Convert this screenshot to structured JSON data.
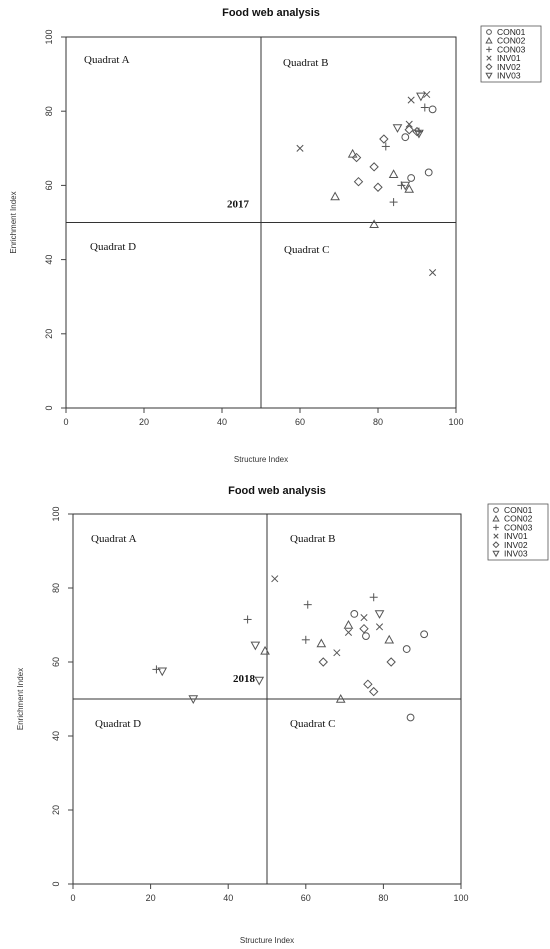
{
  "chart_data": [
    {
      "type": "scatter",
      "title": "Food web analysis",
      "xlabel": "Structure Index",
      "ylabel": "Enrichment Index",
      "xlim": [
        0,
        100
      ],
      "ylim": [
        0,
        100
      ],
      "xticks": [
        "0",
        "20",
        "40",
        "60",
        "80",
        "100"
      ],
      "yticks": [
        "0",
        "20",
        "40",
        "60",
        "80",
        "100"
      ],
      "quadrant_lines": {
        "x": 50,
        "y": 50
      },
      "quadrant_labels": [
        "Quadrat A",
        "Quadrat B",
        "Quadrat C",
        "Quadrat D"
      ],
      "annotation": "2017",
      "legend_position": "top-right",
      "series": [
        {
          "name": "CON01",
          "marker": "circle",
          "points": [
            [
              87,
              73
            ],
            [
              94,
              80.5
            ],
            [
              88.5,
              62
            ],
            [
              93,
              63.5
            ]
          ]
        },
        {
          "name": "CON02",
          "marker": "triangle-up",
          "points": [
            [
              69,
              57
            ],
            [
              73.5,
              68.5
            ],
            [
              84,
              63
            ],
            [
              88,
              59
            ],
            [
              79,
              49.5
            ]
          ]
        },
        {
          "name": "CON03",
          "marker": "plus",
          "points": [
            [
              82,
              70.5
            ],
            [
              84,
              55.5
            ],
            [
              86,
              60
            ],
            [
              90.5,
              74.5
            ],
            [
              92,
              81
            ]
          ]
        },
        {
          "name": "INV01",
          "marker": "cross",
          "points": [
            [
              60,
              70
            ],
            [
              88,
              76.5
            ],
            [
              88.5,
              83
            ],
            [
              92.5,
              84.5
            ],
            [
              94,
              36.5
            ]
          ]
        },
        {
          "name": "INV02",
          "marker": "diamond",
          "points": [
            [
              74.5,
              67.5
            ],
            [
              75,
              61
            ],
            [
              79,
              65
            ],
            [
              80,
              59.5
            ],
            [
              81.5,
              72.5
            ],
            [
              88,
              75
            ],
            [
              90,
              74.5
            ]
          ]
        },
        {
          "name": "INV03",
          "marker": "triangle-down",
          "points": [
            [
              85,
              75.5
            ],
            [
              87,
              60
            ],
            [
              90.5,
              74
            ],
            [
              91,
              84
            ]
          ]
        }
      ]
    },
    {
      "type": "scatter",
      "title": "Food web analysis",
      "xlabel": "Structure Index",
      "ylabel": "Enrichment Index",
      "xlim": [
        0,
        100
      ],
      "ylim": [
        0,
        100
      ],
      "xticks": [
        "0",
        "20",
        "40",
        "60",
        "80",
        "100"
      ],
      "yticks": [
        "0",
        "20",
        "40",
        "60",
        "80",
        "100"
      ],
      "quadrant_lines": {
        "x": 50,
        "y": 50
      },
      "quadrant_labels": [
        "Quadrat A",
        "Quadrat B",
        "Quadrat C",
        "Quadrat D"
      ],
      "annotation": "2018",
      "legend_position": "top-right",
      "series": [
        {
          "name": "CON01",
          "marker": "circle",
          "points": [
            [
              72.5,
              73
            ],
            [
              75.5,
              67
            ],
            [
              86,
              63.5
            ],
            [
              87,
              45
            ],
            [
              90.5,
              67.5
            ]
          ]
        },
        {
          "name": "CON02",
          "marker": "triangle-up",
          "points": [
            [
              49.5,
              63
            ],
            [
              64,
              65
            ],
            [
              69,
              50
            ],
            [
              71,
              70
            ],
            [
              81.5,
              66
            ]
          ]
        },
        {
          "name": "CON03",
          "marker": "plus",
          "points": [
            [
              21.5,
              58
            ],
            [
              45,
              71.5
            ],
            [
              60,
              66
            ],
            [
              60.5,
              75.5
            ],
            [
              77.5,
              77.5
            ]
          ]
        },
        {
          "name": "INV01",
          "marker": "cross",
          "points": [
            [
              52,
              82.5
            ],
            [
              68,
              62.5
            ],
            [
              71,
              68
            ],
            [
              75,
              72
            ],
            [
              79,
              69.5
            ]
          ]
        },
        {
          "name": "INV02",
          "marker": "diamond",
          "points": [
            [
              64.5,
              60
            ],
            [
              75,
              69
            ],
            [
              76,
              54
            ],
            [
              77.5,
              52
            ],
            [
              82,
              60
            ]
          ]
        },
        {
          "name": "INV03",
          "marker": "triangle-down",
          "points": [
            [
              23,
              57.5
            ],
            [
              31,
              50
            ],
            [
              48,
              55
            ],
            [
              47,
              64.5
            ],
            [
              79,
              73
            ]
          ]
        }
      ]
    }
  ]
}
